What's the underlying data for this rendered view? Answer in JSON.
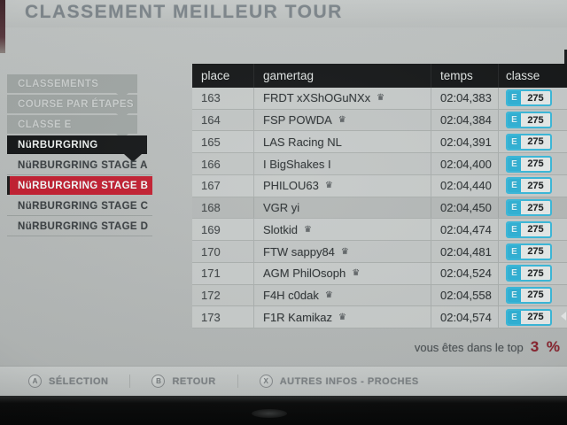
{
  "title": "CLASSEMENT MEILLEUR TOUR",
  "sidebar": {
    "items": [
      {
        "label": "CLASSEMENTS",
        "style": "muted"
      },
      {
        "label": "COURSE PAR ÉTAPES",
        "style": "muted"
      },
      {
        "label": "CLASSE E",
        "style": "muted"
      },
      {
        "label": "NüRBURGRING",
        "style": "black"
      },
      {
        "label": "NüRBURGRING STAGE A",
        "style": "light"
      },
      {
        "label": "NüRBURGRING STAGE B",
        "style": "selected"
      },
      {
        "label": "NüRBURGRING STAGE C",
        "style": "light"
      },
      {
        "label": "NüRBURGRING STAGE D",
        "style": "light"
      }
    ]
  },
  "table": {
    "columns": [
      {
        "key": "place",
        "label": "place"
      },
      {
        "key": "gamertag",
        "label": "gamertag"
      },
      {
        "key": "temps",
        "label": "temps"
      },
      {
        "key": "classe",
        "label": "classe"
      }
    ],
    "rows": [
      {
        "place": "163",
        "gamertag": "FRDT xXShOGuNXx",
        "crown": true,
        "temps": "02:04,383",
        "classe": {
          "letter": "E",
          "value": "275"
        },
        "highlight": false
      },
      {
        "place": "164",
        "gamertag": "FSP POWDA",
        "crown": true,
        "temps": "02:04,384",
        "classe": {
          "letter": "E",
          "value": "275"
        },
        "highlight": false
      },
      {
        "place": "165",
        "gamertag": "LAS Racing NL",
        "crown": false,
        "temps": "02:04,391",
        "classe": {
          "letter": "E",
          "value": "275"
        },
        "highlight": false
      },
      {
        "place": "166",
        "gamertag": "I BigShakes I",
        "crown": false,
        "temps": "02:04,400",
        "classe": {
          "letter": "E",
          "value": "275"
        },
        "highlight": false
      },
      {
        "place": "167",
        "gamertag": "PHILOU63",
        "crown": true,
        "temps": "02:04,440",
        "classe": {
          "letter": "E",
          "value": "275"
        },
        "highlight": false
      },
      {
        "place": "168",
        "gamertag": "VGR yi",
        "crown": false,
        "temps": "02:04,450",
        "classe": {
          "letter": "E",
          "value": "275"
        },
        "highlight": true
      },
      {
        "place": "169",
        "gamertag": "Slotkid",
        "crown": true,
        "temps": "02:04,474",
        "classe": {
          "letter": "E",
          "value": "275"
        },
        "highlight": false
      },
      {
        "place": "170",
        "gamertag": "FTW sappy84",
        "crown": true,
        "temps": "02:04,481",
        "classe": {
          "letter": "E",
          "value": "275"
        },
        "highlight": false
      },
      {
        "place": "171",
        "gamertag": "AGM PhilOsoph",
        "crown": true,
        "temps": "02:04,524",
        "classe": {
          "letter": "E",
          "value": "275"
        },
        "highlight": false
      },
      {
        "place": "172",
        "gamertag": "F4H c0dak",
        "crown": true,
        "temps": "02:04,558",
        "classe": {
          "letter": "E",
          "value": "275"
        },
        "highlight": false
      },
      {
        "place": "173",
        "gamertag": "F1R Kamikaz",
        "crown": true,
        "temps": "02:04,574",
        "classe": {
          "letter": "E",
          "value": "275"
        },
        "highlight": false
      }
    ]
  },
  "footer": {
    "note_prefix": "vous êtes dans le top",
    "note_percent": "3 %"
  },
  "button_bar": {
    "items": [
      {
        "key": "A",
        "label": "SÉLECTION"
      },
      {
        "key": "B",
        "label": "RETOUR"
      },
      {
        "key": "X",
        "label": "AUTRES INFOS - PROCHES"
      }
    ]
  },
  "icons": {
    "crown": "♛"
  },
  "colors": {
    "selected_red": "#c11f31",
    "class_cyan": "#2fb0d4",
    "percent_maroon": "#8b2631",
    "header_black": "#161819"
  }
}
